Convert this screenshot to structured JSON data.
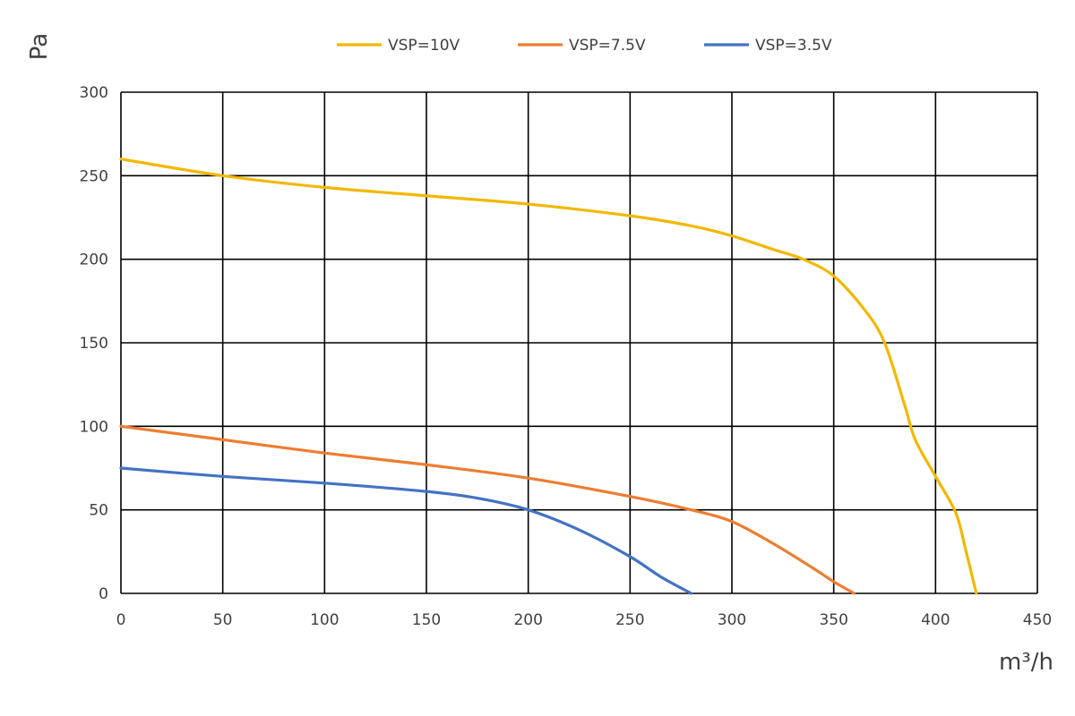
{
  "chart_data": {
    "type": "line",
    "title": "",
    "xlabel": "m³/h",
    "ylabel": "Pa",
    "xlim": [
      0,
      450
    ],
    "ylim": [
      0,
      300
    ],
    "xticks": [
      0,
      50,
      100,
      150,
      200,
      250,
      300,
      350,
      400,
      450
    ],
    "yticks": [
      0,
      50,
      100,
      150,
      200,
      250,
      300
    ],
    "grid": true,
    "legend_position": "top",
    "series": [
      {
        "name": "VSP=10V",
        "color": "#F2B800",
        "x": [
          0,
          50,
          100,
          150,
          200,
          250,
          280,
          300,
          320,
          335,
          350,
          365,
          375,
          385,
          390,
          400,
          410,
          415,
          420
        ],
        "y": [
          260,
          250,
          243,
          238,
          233,
          226,
          220,
          214,
          206,
          200,
          190,
          170,
          150,
          112,
          92,
          70,
          48,
          25,
          0
        ]
      },
      {
        "name": "VSP=7.5V",
        "color": "#ED7D31",
        "x": [
          0,
          50,
          100,
          150,
          200,
          250,
          280,
          300,
          320,
          340,
          350,
          360
        ],
        "y": [
          100,
          92,
          84,
          77,
          69,
          58,
          50,
          43,
          30,
          15,
          7,
          0
        ]
      },
      {
        "name": "VSP=3.5V",
        "color": "#4472C4",
        "x": [
          0,
          50,
          100,
          150,
          175,
          200,
          225,
          250,
          265,
          280
        ],
        "y": [
          75,
          70,
          66,
          61,
          57,
          50,
          38,
          22,
          10,
          0
        ]
      }
    ]
  }
}
